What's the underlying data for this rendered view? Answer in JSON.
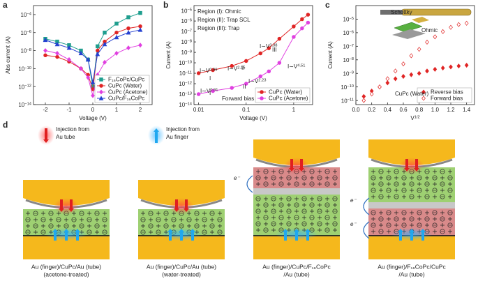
{
  "chart_data": [
    {
      "type": "line",
      "panel_label": "a",
      "xlabel": "Voltage (V)",
      "ylabel": "Abs current (A)",
      "xscale": "linear",
      "yscale": "log",
      "xlim": [
        -2.5,
        2.5
      ],
      "ylim": [
        1e-14,
        0.001
      ],
      "xticks": [
        -2,
        -1,
        0,
        1,
        2
      ],
      "yticks": [
        {
          "value": 1e-14,
          "label": "10^−14"
        },
        {
          "value": 1e-12,
          "label": "10^−12"
        },
        {
          "value": 1e-10,
          "label": "10^−10"
        },
        {
          "value": 1e-08,
          "label": "10^−8"
        },
        {
          "value": 1e-06,
          "label": "10^−6"
        },
        {
          "value": 0.0001,
          "label": "10^−4"
        }
      ],
      "legend": "lower right",
      "x": [
        -2,
        -1.5,
        -1,
        -0.5,
        -0.2,
        0,
        0.2,
        0.5,
        1,
        1.5,
        2
      ],
      "series": [
        {
          "name": "F₁₆CoPc/CuPc",
          "color": "#1f9e8e",
          "marker": "square",
          "values": [
            2e-07,
            1e-07,
            4e-08,
            1e-08,
            1e-09,
            1e-12,
            3e-08,
            1e-06,
            1e-05,
            5e-05,
            0.00015
          ]
        },
        {
          "name": "CuPc (Water)",
          "color": "#e02424",
          "marker": "circle",
          "values": [
            3e-09,
            2e-09,
            6e-10,
            1e-10,
            2e-11,
            5e-13,
            1e-08,
            1e-07,
            1e-06,
            3e-06,
            5e-06
          ]
        },
        {
          "name": "CuPc (Acetone)",
          "color": "#e040e0",
          "marker": "diamond",
          "values": [
            1e-08,
            5e-09,
            1e-09,
            1e-10,
            1e-11,
            1e-13,
            2e-11,
            5e-10,
            5e-09,
            2e-08,
            4e-08
          ]
        },
        {
          "name": "CuPc/F₁₆CoPc",
          "color": "#2440d0",
          "marker": "triangle",
          "values": [
            1.5e-07,
            5e-08,
            2e-08,
            5e-09,
            1e-09,
            3e-12,
            4e-09,
            5e-08,
            3e-07,
            1e-06,
            2e-06
          ]
        }
      ]
    },
    {
      "type": "line",
      "panel_label": "b",
      "xlabel": "Voltage (V)",
      "ylabel": "Current (A)",
      "xscale": "log",
      "yscale": "log",
      "xlim": [
        0.008,
        2.5
      ],
      "ylim": [
        1e-14,
        3e-05
      ],
      "xticks": [
        0.01,
        0.1,
        1
      ],
      "yticks": [
        {
          "value": 1e-14,
          "label": "10^−14"
        },
        {
          "value": 1e-13,
          "label": "10^−13"
        },
        {
          "value": 1e-12,
          "label": "10^−12"
        },
        {
          "value": 1e-11,
          "label": "10^−11"
        },
        {
          "value": 1e-10,
          "label": "10^−10"
        },
        {
          "value": 1e-09,
          "label": "10^−9"
        },
        {
          "value": 1e-08,
          "label": "10^−8"
        },
        {
          "value": 1e-07,
          "label": "10^−7"
        },
        {
          "value": 1e-06,
          "label": "10^−6"
        },
        {
          "value": 1e-05,
          "label": "10^−5"
        }
      ],
      "legend": "lower right",
      "x": [
        0.01,
        0.02,
        0.05,
        0.1,
        0.2,
        0.3,
        0.5,
        1,
        1.5,
        2
      ],
      "series": [
        {
          "name": "CuPc (Water)",
          "color": "#e02424",
          "marker": "circle",
          "values": [
            1e-11,
            2e-11,
            5e-11,
            1.5e-10,
            8e-10,
            2.5e-09,
            2e-08,
            3e-07,
            1.5e-06,
            4e-06
          ]
        },
        {
          "name": "CuPc (Acetone)",
          "color": "#e040e0",
          "marker": "circle",
          "values": [
            1e-13,
            2e-13,
            4e-13,
            1e-12,
            5e-12,
            1.5e-11,
            1e-10,
            3e-08,
            2e-07,
            7e-07
          ]
        }
      ],
      "annotations": [
        "Region (I): Ohmic",
        "Region (II): Trap SCL",
        "Region (III): Trap",
        "I∼V^0.99",
        "I∼V^2.15",
        "I∼V^3.38",
        "III",
        "II",
        "I",
        "I∼V^4.51",
        "II",
        "I",
        "I∼V^2.23",
        "I∼V^0.91",
        "Forward bias"
      ]
    },
    {
      "type": "scatter",
      "panel_label": "c",
      "xlabel": "V^1/2",
      "ylabel": "Current (A)",
      "xscale": "linear",
      "yscale": "log",
      "xlim": [
        0,
        1.5
      ],
      "ylim": [
        5e-12,
        0.0001
      ],
      "xticks": [
        {
          "value": 0,
          "label": "0.0"
        },
        0.2,
        0.4,
        0.6,
        0.8,
        {
          "value": 1,
          "label": "1.0"
        },
        1.2,
        1.4
      ],
      "yticks": [
        {
          "value": 1e-11,
          "label": "10^−11"
        },
        {
          "value": 1e-10,
          "label": "10^−10"
        },
        {
          "value": 1e-09,
          "label": "10^−9"
        },
        {
          "value": 1e-08,
          "label": "10^−8"
        },
        {
          "value": 1e-07,
          "label": "10^−7"
        },
        {
          "value": 1e-06,
          "label": "10^−6"
        },
        {
          "value": 1e-05,
          "label": "10^−5"
        }
      ],
      "legend": "lower right",
      "x": [
        0.1,
        0.2,
        0.3,
        0.4,
        0.5,
        0.6,
        0.7,
        0.8,
        0.9,
        1.0,
        1.1,
        1.2,
        1.3,
        1.4
      ],
      "series": [
        {
          "name": "Reverse bias",
          "color": "#e02424",
          "marker": "diamond",
          "filled": true,
          "values": [
            2e-11,
            5e-11,
            1e-10,
            2e-10,
            4e-10,
            6e-10,
            8e-10,
            1e-09,
            1.5e-09,
            2e-09,
            2.5e-09,
            3e-09,
            3.5e-09,
            4e-09
          ]
        },
        {
          "name": "Forward bias",
          "color": "#e02424",
          "marker": "diamond",
          "filled": false,
          "values": [
            1e-11,
            3e-11,
            1e-10,
            4e-10,
            1.5e-09,
            5e-09,
            2e-08,
            6e-08,
            2e-07,
            5e-07,
            1.2e-06,
            2.5e-06,
            4e-06,
            5e-06
          ]
        }
      ],
      "annotations": [
        "Schottky",
        "Ohmic",
        "CuPc (Water)"
      ]
    }
  ],
  "panel_d": {
    "label": "d",
    "legend": [
      [
        "Injection from",
        "Au tube"
      ],
      [
        "Injection from",
        "Au finger"
      ]
    ],
    "electron_labels": [
      "e⁻",
      "e⁻",
      "e⁻"
    ],
    "captions": [
      [
        "Au (finger)/CuPc/Au (tube)",
        "(acetone-treated)"
      ],
      [
        "Au (finger)/CuPc/Au (tube)",
        "(water-treated)"
      ],
      [
        "Au (finger)/CuPc/F₁₆CoPc",
        "/Au (tube)"
      ],
      [
        "Au (finger)/F₁₆CoPc/CuPc",
        "/Au (tube)"
      ]
    ]
  }
}
